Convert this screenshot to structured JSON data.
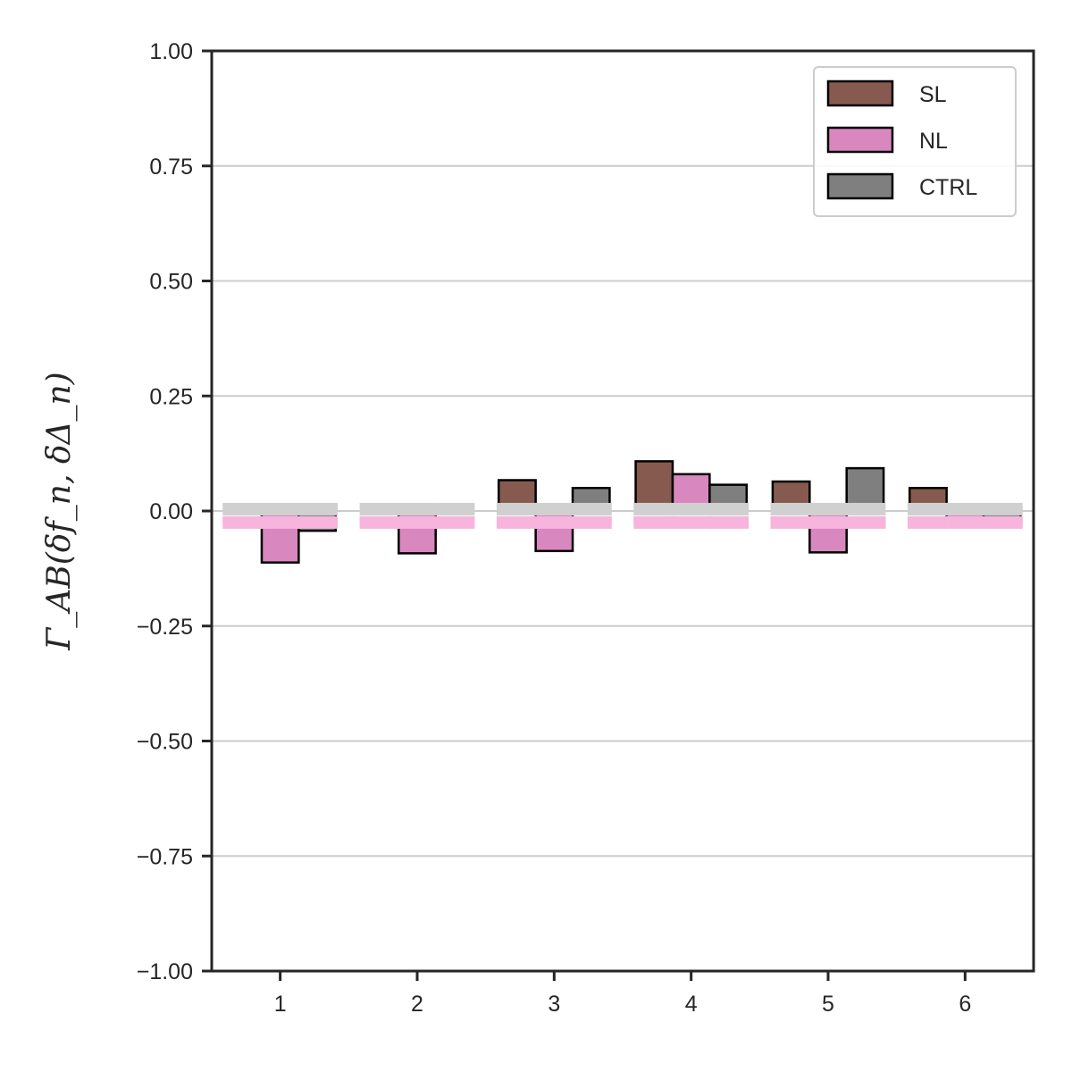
{
  "chart_data": {
    "type": "bar",
    "categories": [
      "1",
      "2",
      "3",
      "4",
      "5",
      "6"
    ],
    "series": [
      {
        "name": "SL",
        "color": "#875a50",
        "values": [
          0.01,
          0.005,
          0.067,
          0.108,
          0.064,
          0.05
        ]
      },
      {
        "name": "NL",
        "color": "#d987bf",
        "values": [
          -0.112,
          -0.092,
          -0.087,
          0.08,
          -0.09,
          -0.016
        ]
      },
      {
        "name": "CTRL",
        "color": "#7f7f7f",
        "values": [
          -0.043,
          0.003,
          0.05,
          0.057,
          0.093,
          -0.027
        ]
      }
    ],
    "reference_bands": [
      {
        "series": "SL",
        "color": "#ebb9b0",
        "value": -0.02
      },
      {
        "series": "NL",
        "color": "#f7b4dc",
        "value": -0.025
      },
      {
        "series": "CTRL",
        "color": "#d0d0d0",
        "value": 0.004
      }
    ],
    "ylabel": "Γ_AB(δf_n, δΔ_n)",
    "ylim": [
      -1.0,
      1.0
    ],
    "yticks": [
      "−1.00",
      "−0.75",
      "−0.50",
      "−0.25",
      "0.00",
      "0.25",
      "0.50",
      "0.75",
      "1.00"
    ],
    "ytick_values": [
      -1.0,
      -0.75,
      -0.5,
      -0.25,
      0.0,
      0.25,
      0.5,
      0.75,
      1.0
    ],
    "grid": "horizontal",
    "legend_position": "top-right"
  }
}
